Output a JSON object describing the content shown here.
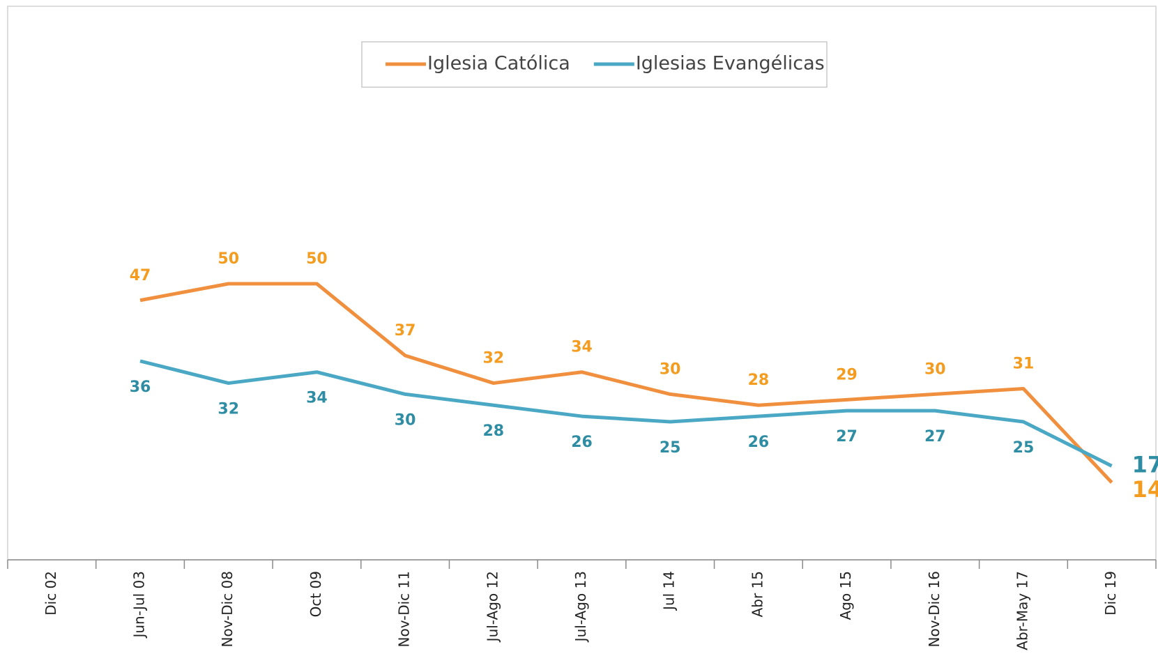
{
  "chart_data": {
    "type": "line",
    "categories": [
      "Dic 02",
      "Jun-Jul 03",
      "Nov-Dic 08",
      "Oct 09",
      "Nov-Dic 11",
      "Jul-Ago 12",
      "Jul-Ago 13",
      "Jul 14",
      "Abr 15",
      "Ago 15",
      "Nov-Dic 16",
      "Abr-May 17",
      "Dic 19"
    ],
    "series": [
      {
        "name": "Iglesia Católica",
        "color": "#f0903f",
        "label_color": "#f39c1f",
        "label_position": "above",
        "values": [
          null,
          47,
          50,
          50,
          37,
          32,
          34,
          30,
          28,
          29,
          30,
          31,
          14
        ]
      },
      {
        "name": "Iglesias Evangélicas",
        "color": "#4aa8c4",
        "label_color": "#2e8da3",
        "label_position": "below",
        "values": [
          null,
          36,
          32,
          34,
          30,
          28,
          26,
          25,
          26,
          27,
          27,
          25,
          17
        ]
      }
    ],
    "ylim": [
      0,
      100
    ],
    "legend": "top"
  }
}
